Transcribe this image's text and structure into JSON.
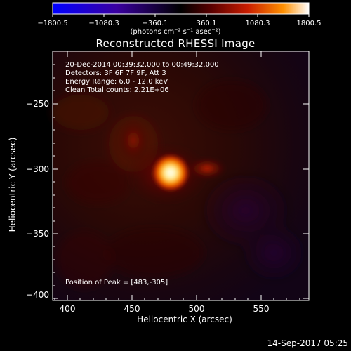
{
  "colorbar": {
    "ticks": [
      "−1800.5",
      "−1080.3",
      "−360.1",
      "360.1",
      "1080.3",
      "1800.5"
    ],
    "unit": "(photons cm⁻² s⁻¹ asec⁻²)",
    "colors": [
      "#0000ff",
      "#3a00a0",
      "#000000",
      "#5a0000",
      "#c81c00",
      "#ff9000",
      "#ffffff"
    ]
  },
  "title": "Reconstructed RHESSI Image",
  "info": {
    "line1": "20-Dec-2014 00:39:32.000 to 00:49:32.000",
    "line2": "Detectors: 3F 6F 7F 9F, Att 3",
    "line3": "Energy Range: 6.0 - 12.0 keV",
    "line4": "Clean    Total counts: 2.21E+06",
    "peak": "Position of Peak = [483,-305]"
  },
  "axes": {
    "xlabel": "Heliocentric X (arcsec)",
    "ylabel": "Heliocentric Y (arcsec)",
    "xticks": [
      "400",
      "450",
      "500",
      "550"
    ],
    "yticks": [
      "−250",
      "−300",
      "−350",
      "−400"
    ]
  },
  "timestamp": "14-Sep-2017 05:25"
}
